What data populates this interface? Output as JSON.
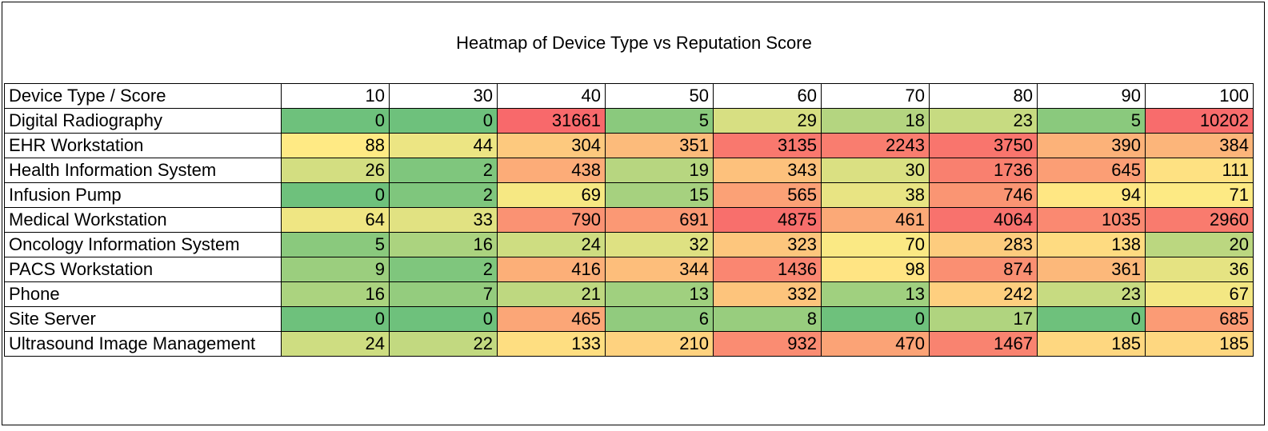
{
  "chart_data": {
    "type": "heatmap",
    "title": "Heatmap of Device Type vs Reputation Score",
    "corner_label": "Device Type / Score",
    "columns": [
      "10",
      "30",
      "40",
      "50",
      "60",
      "70",
      "80",
      "90",
      "100"
    ],
    "rows": [
      "Digital Radiography",
      "EHR Workstation",
      "Health Information System",
      "Infusion Pump",
      "Medical Workstation",
      "Oncology Information System",
      "PACS Workstation",
      "Phone",
      "Site Server",
      "Ultrasound Image Management"
    ],
    "values": [
      [
        0,
        0,
        31661,
        5,
        29,
        18,
        23,
        5,
        10202
      ],
      [
        88,
        44,
        304,
        351,
        3135,
        2243,
        3750,
        390,
        384
      ],
      [
        26,
        2,
        438,
        19,
        343,
        30,
        1736,
        645,
        111
      ],
      [
        0,
        2,
        69,
        15,
        565,
        38,
        746,
        94,
        71
      ],
      [
        64,
        33,
        790,
        691,
        4875,
        461,
        4064,
        1035,
        2960
      ],
      [
        5,
        16,
        24,
        32,
        323,
        70,
        283,
        138,
        20
      ],
      [
        9,
        2,
        416,
        344,
        1436,
        98,
        874,
        361,
        36
      ],
      [
        16,
        7,
        21,
        13,
        332,
        13,
        242,
        23,
        67
      ],
      [
        0,
        0,
        465,
        6,
        8,
        0,
        17,
        0,
        685
      ],
      [
        24,
        22,
        133,
        210,
        932,
        470,
        1467,
        185,
        185
      ]
    ],
    "color_scale": {
      "low": "#63BE7B",
      "mid": "#FFEB84",
      "high": "#F8696B"
    }
  }
}
